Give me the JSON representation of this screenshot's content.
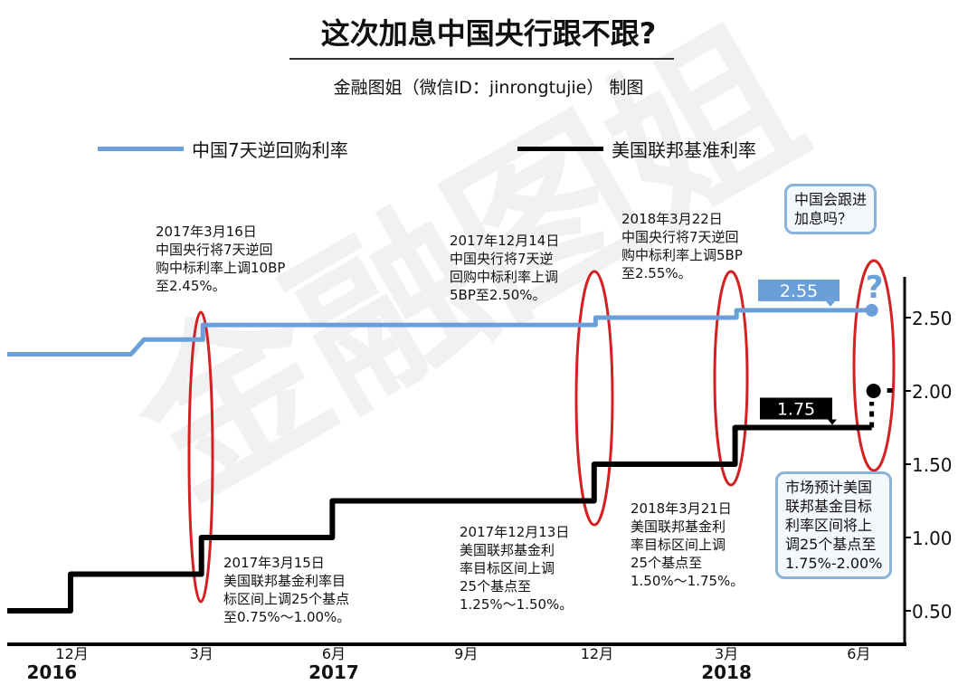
{
  "header": {
    "title": "这次加息中国央行跟不跟?",
    "subtitle": "金融图姐（微信ID：jinrongtujie） 制图",
    "watermark": "金融图姐"
  },
  "colors": {
    "china": "#6a9fd8",
    "us": "#000000",
    "ellipse": "#d42020",
    "bubble_border": "#8ab4dc"
  },
  "chart_data": {
    "type": "line",
    "title": "这次加息中国央行跟不跟?",
    "legend_position": "top",
    "ylim": [
      0.4,
      2.8
    ],
    "yticks": [
      "2.50",
      "2.00",
      "1.50",
      "1.00",
      "0.50"
    ],
    "ytick_values": [
      2.5,
      2.0,
      1.5,
      1.0,
      0.5
    ],
    "y_axis_side": "right",
    "grid": false,
    "xticks": [
      {
        "date": "2016-12-15",
        "label": "12月"
      },
      {
        "date": "2017-03-15",
        "label": "3月"
      },
      {
        "date": "2017-06-15",
        "label": "6月"
      },
      {
        "date": "2017-09-15",
        "label": "9月"
      },
      {
        "date": "2017-12-15",
        "label": "12月"
      },
      {
        "date": "2018-03-15",
        "label": "3月"
      },
      {
        "date": "2018-06-15",
        "label": "6月"
      }
    ],
    "year_labels": [
      {
        "date": "2016-12-01",
        "label": "2016"
      },
      {
        "date": "2017-06-15",
        "label": "2017"
      },
      {
        "date": "2018-03-15",
        "label": "2018"
      }
    ],
    "series": [
      {
        "name": "中国7天逆回购利率",
        "color": "#6a9fd8",
        "points": [
          [
            "2016-10-31",
            2.25
          ],
          [
            "2017-01-25",
            2.25
          ],
          [
            "2017-02-03",
            2.35
          ],
          [
            "2017-03-16",
            2.35
          ],
          [
            "2017-03-16",
            2.45
          ],
          [
            "2017-12-14",
            2.45
          ],
          [
            "2017-12-14",
            2.5
          ],
          [
            "2018-03-22",
            2.5
          ],
          [
            "2018-03-22",
            2.55
          ],
          [
            "2018-06-24",
            2.55
          ]
        ],
        "end_label": "2.55",
        "end_marker": "?"
      },
      {
        "name": "美国联邦基准利率",
        "color": "#000000",
        "points": [
          [
            "2016-10-31",
            0.5
          ],
          [
            "2016-12-14",
            0.5
          ],
          [
            "2016-12-14",
            0.75
          ],
          [
            "2017-03-15",
            0.75
          ],
          [
            "2017-03-15",
            1.0
          ],
          [
            "2017-06-14",
            1.0
          ],
          [
            "2017-06-14",
            1.25
          ],
          [
            "2017-12-13",
            1.25
          ],
          [
            "2017-12-13",
            1.5
          ],
          [
            "2018-03-21",
            1.5
          ],
          [
            "2018-03-21",
            1.75
          ],
          [
            "2018-06-24",
            1.75
          ]
        ],
        "end_label": "1.75",
        "projected": [
          "2018-06-24",
          2.0
        ]
      }
    ],
    "annotations": {
      "cn_2017_03": "2017年3月16日\n中国央行将7天逆回\n购中标利率上调10BP\n至2.45%。",
      "cn_2017_12": "2017年12月14日\n中国央行将7天逆\n回购中标利率上调\n5BP至2.50%。",
      "cn_2018_03": "2018年3月22日\n中国央行将7天逆回\n购中标利率上调5BP\n至2.55%。",
      "us_2017_03": "2017年3月15日\n美国联邦基金利率目\n标区间上调25个基点\n至0.75%～1.00%。",
      "us_2017_12": "2017年12月13日\n美国联邦基金利\n率目标区间上调\n25个基点至\n1.25%～1.50%。",
      "us_2018_03": "2018年3月21日\n美国联邦基金利\n率目标区间上调\n25个基点至\n1.50%～1.75%。",
      "question": "中国会跟进\n加息吗？",
      "forecast": "市场预计美国\n联邦基金目标\n利率区间将上\n调25个基点至\n1.75%-2.00%"
    }
  }
}
